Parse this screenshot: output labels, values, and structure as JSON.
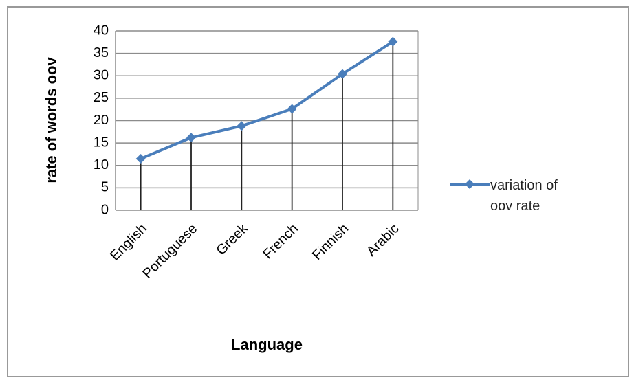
{
  "chart_data": {
    "type": "line",
    "x_label": "Language",
    "y_label": "rate of words oov",
    "categories": [
      "English",
      "Portuguese",
      "Greek",
      "French",
      "Finnish",
      "Arabic"
    ],
    "series": [
      {
        "name": "variation of oov rate",
        "color": "#4a7ebb",
        "values": [
          11.5,
          16.2,
          18.8,
          22.6,
          30.4,
          37.6
        ]
      }
    ],
    "ylim": [
      0,
      40
    ],
    "yticks": [
      0,
      5,
      10,
      15,
      20,
      25,
      30,
      35,
      40
    ],
    "grid": true,
    "drop_lines": true,
    "legend": "right"
  }
}
